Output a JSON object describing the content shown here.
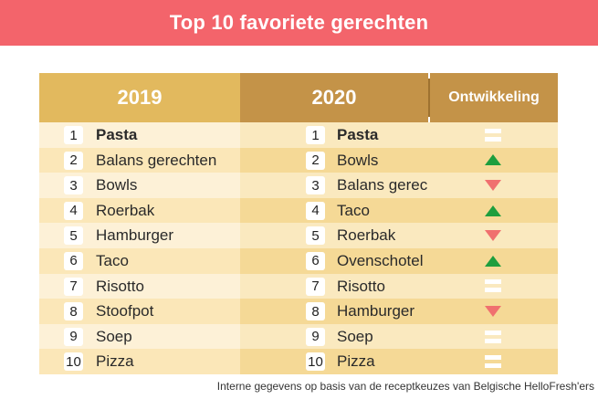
{
  "banner": {
    "title": "Top 10 favoriete gerechten"
  },
  "table": {
    "headers": {
      "y2019": "2019",
      "y2020": "2020",
      "development": "Ontwikkeling"
    },
    "rows": [
      {
        "rank2019": "1",
        "dish2019": "Pasta",
        "rank2020": "1",
        "dish2020": "Pasta",
        "trend": "equal"
      },
      {
        "rank2019": "2",
        "dish2019": "Balans gerechten",
        "rank2020": "2",
        "dish2020": "Bowls",
        "trend": "up"
      },
      {
        "rank2019": "3",
        "dish2019": "Bowls",
        "rank2020": "3",
        "dish2020": "Balans gerechten",
        "trend": "down"
      },
      {
        "rank2019": "4",
        "dish2019": "Roerbak",
        "rank2020": "4",
        "dish2020": "Taco",
        "trend": "up"
      },
      {
        "rank2019": "5",
        "dish2019": "Hamburger",
        "rank2020": "5",
        "dish2020": "Roerbak",
        "trend": "down"
      },
      {
        "rank2019": "6",
        "dish2019": "Taco",
        "rank2020": "6",
        "dish2020": "Ovenschotel",
        "trend": "up"
      },
      {
        "rank2019": "7",
        "dish2019": "Risotto",
        "rank2020": "7",
        "dish2020": "Risotto",
        "trend": "equal"
      },
      {
        "rank2019": "8",
        "dish2019": "Stoofpot",
        "rank2020": "8",
        "dish2020": "Hamburger",
        "trend": "down"
      },
      {
        "rank2019": "9",
        "dish2019": "Soep",
        "rank2020": "9",
        "dish2020": "Soep",
        "trend": "equal"
      },
      {
        "rank2019": "10",
        "dish2019": "Pizza",
        "rank2020": "10",
        "dish2020": "Pizza",
        "trend": "equal"
      }
    ]
  },
  "footnote": "Interne gegevens op basis van de receptkeuzes van Belgische HelloFresh'ers",
  "colors": {
    "banner": "#f3646b",
    "header2019": "#e2b95e",
    "header2020": "#c49348",
    "up": "#1e9e3e",
    "down": "#f0706f",
    "equal": "#ffffff"
  }
}
